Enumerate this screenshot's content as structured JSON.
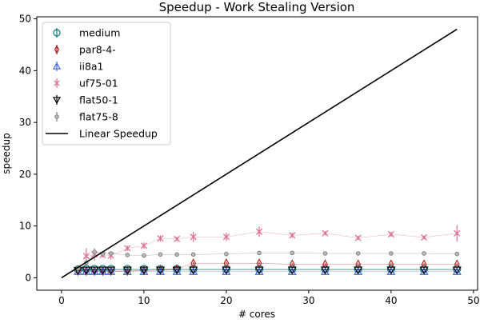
{
  "chart_data": {
    "type": "scatter",
    "title": "Speedup - Work Stealing Version",
    "xlabel": "# cores",
    "ylabel": "speedup",
    "xlim": [
      -3,
      50.5
    ],
    "ylim": [
      -2.4,
      50.4
    ],
    "xticks": [
      "0",
      "10",
      "20",
      "30",
      "40",
      "50"
    ],
    "yticks": [
      "0",
      "10",
      "20",
      "30",
      "40",
      "50"
    ],
    "grid": false,
    "legend_position": "upper-left",
    "series": [
      {
        "name": "medium",
        "color": "#008080",
        "marker": "circle",
        "x": [
          2,
          3,
          4,
          5,
          6,
          8,
          10,
          12,
          14,
          16,
          20,
          24,
          28,
          32,
          36,
          40,
          44,
          48
        ],
        "y": [
          1.6,
          1.7,
          1.7,
          1.7,
          1.7,
          1.7,
          1.7,
          1.7,
          1.7,
          1.7,
          1.7,
          1.7,
          1.7,
          1.7,
          1.7,
          1.7,
          1.7,
          1.7
        ],
        "err": [
          0.2,
          0.2,
          0.2,
          0.2,
          0.2,
          0.2,
          0.2,
          0.2,
          0.2,
          0.2,
          0.2,
          0.2,
          0.2,
          0.2,
          0.2,
          0.2,
          0.2,
          0.2
        ]
      },
      {
        "name": "par8-4-",
        "color": "#b22222",
        "marker": "thin-diamond",
        "x": [
          2,
          3,
          4,
          5,
          6,
          8,
          10,
          12,
          14,
          16,
          20,
          24,
          28,
          32,
          36,
          40,
          44,
          48
        ],
        "y": [
          1.3,
          1.3,
          1.3,
          1.3,
          1.3,
          1.3,
          1.4,
          1.5,
          1.7,
          2.8,
          2.8,
          2.8,
          2.6,
          2.6,
          2.6,
          2.6,
          2.6,
          2.6
        ],
        "err": [
          0.1,
          0.1,
          0.1,
          0.1,
          0.1,
          0.1,
          0.1,
          0.1,
          0.1,
          0.2,
          0.2,
          0.2,
          0.2,
          0.2,
          0.2,
          0.2,
          0.2,
          0.2
        ]
      },
      {
        "name": "ii8a1",
        "color": "#4169e1",
        "marker": "triangle-up",
        "x": [
          2,
          3,
          4,
          5,
          6,
          8,
          10,
          12,
          14,
          16,
          20,
          24,
          28,
          32,
          36,
          40,
          44,
          48
        ],
        "y": [
          1.2,
          1.2,
          1.2,
          1.2,
          1.2,
          1.2,
          1.2,
          1.2,
          1.2,
          1.2,
          1.2,
          1.2,
          1.2,
          1.2,
          1.2,
          1.2,
          1.2,
          1.2
        ],
        "err": [
          0.1,
          0.1,
          0.1,
          0.1,
          0.1,
          0.1,
          0.1,
          0.1,
          0.1,
          0.1,
          0.1,
          0.1,
          0.1,
          0.1,
          0.1,
          0.1,
          0.1,
          0.1
        ]
      },
      {
        "name": "uf75-01",
        "color": "#db7093",
        "marker": "x",
        "x": [
          2,
          3,
          4,
          5,
          6,
          8,
          10,
          12,
          14,
          16,
          20,
          24,
          28,
          32,
          36,
          40,
          44,
          48
        ],
        "y": [
          1.6,
          4.2,
          4.5,
          4.4,
          4.3,
          5.7,
          6.2,
          7.6,
          7.5,
          7.9,
          7.9,
          8.9,
          8.2,
          8.6,
          7.7,
          8.4,
          7.8,
          8.6
        ],
        "err": [
          0.3,
          1.5,
          1.2,
          0.5,
          0.8,
          0.5,
          0.6,
          0.6,
          0.4,
          1.0,
          0.8,
          1.0,
          0.5,
          0.4,
          0.4,
          0.5,
          0.4,
          1.6
        ]
      },
      {
        "name": "flat50-1",
        "color": "#000000",
        "marker": "triangle-down",
        "x": [
          2,
          3,
          4,
          5,
          6,
          8,
          10,
          12,
          14,
          16,
          20,
          24,
          28,
          32,
          36,
          40,
          44,
          48
        ],
        "y": [
          1.4,
          1.5,
          1.5,
          1.5,
          1.5,
          1.5,
          1.5,
          1.5,
          1.5,
          1.5,
          1.5,
          1.5,
          1.5,
          1.5,
          1.5,
          1.5,
          1.5,
          1.5
        ],
        "err": [
          0.1,
          0.1,
          0.1,
          0.1,
          0.1,
          0.1,
          0.1,
          0.1,
          0.1,
          0.1,
          0.1,
          0.1,
          0.1,
          0.1,
          0.1,
          0.1,
          0.1,
          0.1
        ]
      },
      {
        "name": "flat75-8",
        "color": "#808080",
        "marker": "small-circle",
        "x": [
          2,
          3,
          4,
          5,
          6,
          8,
          10,
          12,
          14,
          16,
          20,
          24,
          28,
          32,
          36,
          40,
          44,
          48
        ],
        "y": [
          1.8,
          2.9,
          5.0,
          4.6,
          4.7,
          4.4,
          4.3,
          4.5,
          4.5,
          4.5,
          4.6,
          4.8,
          4.8,
          4.7,
          4.7,
          4.7,
          4.7,
          4.6
        ],
        "err": [
          0.2,
          0.4,
          0.4,
          0.3,
          0.3,
          0.2,
          0.2,
          0.2,
          0.2,
          0.2,
          0.2,
          0.2,
          0.2,
          0.2,
          0.2,
          0.2,
          0.2,
          0.2
        ]
      },
      {
        "name": "Linear Speedup",
        "color": "#000000",
        "marker": "line",
        "x": [
          0,
          48
        ],
        "y": [
          0,
          48
        ],
        "err": []
      }
    ]
  }
}
